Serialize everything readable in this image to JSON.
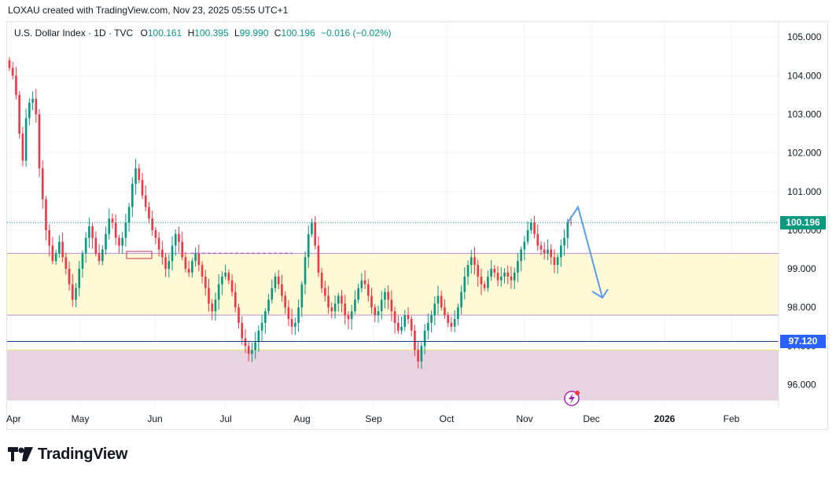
{
  "header": {
    "created_by": "LOXAU created with TradingView.com, Nov 23, 2025 05:55 UTC+1"
  },
  "legend": {
    "symbol": "U.S. Dollar Index · 1D · TVC",
    "open_label": "O",
    "open": "100.161",
    "high_label": "H",
    "high": "100.395",
    "low_label": "L",
    "low": "99.990",
    "close_label": "C",
    "close": "100.196",
    "change": "−0.016 (−0.02%)"
  },
  "price_tags": {
    "last_price": "100.196",
    "support_level": "97.120"
  },
  "colors": {
    "up": "#089981",
    "down": "#f23645",
    "zone_yellow": "#fff9d6",
    "zone_pink": "#e8d3e0",
    "support_line": "#1e3a8a",
    "arrow": "#5b9cf0",
    "last_price_tag": "#089981",
    "support_tag": "#2962ff"
  },
  "icons": {
    "event_marker": "lightning-icon",
    "logo": "tradingview-logo-icon"
  },
  "brand": {
    "name": "TradingView"
  },
  "chart_data": {
    "type": "candlestick",
    "title": "U.S. Dollar Index · 1D · TVC",
    "x_ticks": [
      "Apr",
      "May",
      "Jun",
      "Jul",
      "Aug",
      "Sep",
      "Oct",
      "Nov",
      "Dec",
      "2026",
      "Feb"
    ],
    "y_ticks": [
      "96.000",
      "97.000",
      "98.000",
      "99.000",
      "100.000",
      "101.000",
      "102.000",
      "103.000",
      "104.000",
      "105.000"
    ],
    "ylim": [
      95.4,
      105.4
    ],
    "last_price": 100.196,
    "grid": true,
    "zones": [
      {
        "from": 97.8,
        "to": 99.4,
        "color": "yellow"
      },
      {
        "from": 95.6,
        "to": 96.9,
        "color": "pink"
      }
    ],
    "support_level": 97.12,
    "projection_arrow": {
      "from": 100.6,
      "to": 98.25
    },
    "closes": [
      104.2,
      104.0,
      103.5,
      102.5,
      101.8,
      102.9,
      103.3,
      103.4,
      103.0,
      101.6,
      100.8,
      100.0,
      99.6,
      99.2,
      99.4,
      99.7,
      99.3,
      99.0,
      98.6,
      98.2,
      98.5,
      99.0,
      99.4,
      99.8,
      100.1,
      99.8,
      99.4,
      99.2,
      99.5,
      99.9,
      100.3,
      100.2,
      99.8,
      99.6,
      99.8,
      100.2,
      100.6,
      101.2,
      101.6,
      101.3,
      100.9,
      100.6,
      100.3,
      100.0,
      99.8,
      99.5,
      99.3,
      99.0,
      99.2,
      99.6,
      99.9,
      99.7,
      99.3,
      99.0,
      98.9,
      99.2,
      99.4,
      99.1,
      98.8,
      98.5,
      98.1,
      97.9,
      98.2,
      98.6,
      98.8,
      98.9,
      98.7,
      98.4,
      98.0,
      97.6,
      97.2,
      97.0,
      96.8,
      96.9,
      97.1,
      97.4,
      97.6,
      97.9,
      98.2,
      98.5,
      98.8,
      98.6,
      98.3,
      98.0,
      97.7,
      97.5,
      97.6,
      98.0,
      98.6,
      99.3,
      99.9,
      100.2,
      99.6,
      98.9,
      98.5,
      98.3,
      98.0,
      97.9,
      98.1,
      98.3,
      98.1,
      97.8,
      97.7,
      97.9,
      98.2,
      98.5,
      98.7,
      98.6,
      98.3,
      98.0,
      97.8,
      97.9,
      98.2,
      98.4,
      98.2,
      97.9,
      97.6,
      97.4,
      97.5,
      97.8,
      97.7,
      97.4,
      96.9,
      96.6,
      97.0,
      97.4,
      97.6,
      97.8,
      98.1,
      98.3,
      98.0,
      97.8,
      97.6,
      97.5,
      97.7,
      98.0,
      98.4,
      98.8,
      99.1,
      99.3,
      99.1,
      98.8,
      98.6,
      98.5,
      98.8,
      99.0,
      98.9,
      98.7,
      98.8,
      98.9,
      98.8,
      98.7,
      98.9,
      99.2,
      99.5,
      99.7,
      100.0,
      100.2,
      99.9,
      99.6,
      99.5,
      99.4,
      99.5,
      99.3,
      99.1,
      99.3,
      99.6,
      99.8,
      100.2,
      100.196
    ]
  }
}
